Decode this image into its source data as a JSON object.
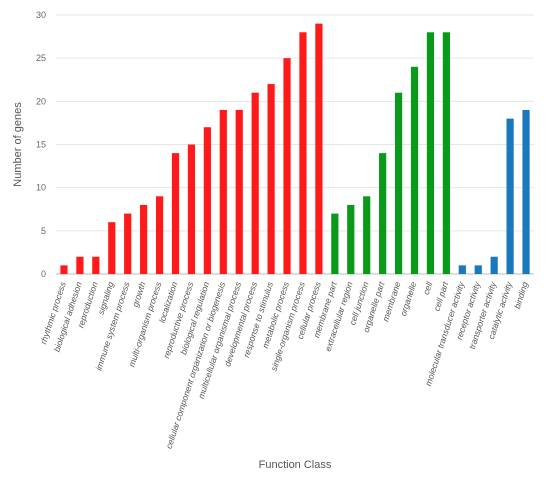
{
  "chart_data": {
    "type": "bar",
    "xlabel": "Function Class",
    "ylabel": "Number of genes",
    "ylim": [
      0,
      30
    ],
    "yticks": [
      0,
      5,
      10,
      15,
      20,
      25,
      30
    ],
    "grid": true,
    "colors": {
      "biological_process": "#ff1a1a",
      "cellular_component": "#0a9a1a",
      "molecular_function": "#1a78bd"
    },
    "categories": [
      "rhythmic process",
      "biological adhesion",
      "reproduction",
      "signaling",
      "immune system process",
      "growth",
      "multi-organism process",
      "localization",
      "reproductive process",
      "biological regulation",
      "cellular component organization or biogenesis",
      "multicellular organismal process",
      "developmental process",
      "response to stimulus",
      "metabolic process",
      "single-organism process",
      "cellular process",
      "membrane part",
      "extracellular region",
      "cell junction",
      "organelle part",
      "membrane",
      "organelle",
      "cell",
      "cell part",
      "molecular transducer activity",
      "receptor activity",
      "transporter activity",
      "catalytic activity",
      "binding"
    ],
    "values": [
      1,
      2,
      2,
      6,
      7,
      8,
      9,
      14,
      15,
      17,
      19,
      19,
      21,
      22,
      25,
      28,
      29,
      7,
      8,
      9,
      14,
      21,
      24,
      28,
      28,
      1,
      1,
      2,
      18,
      19
    ],
    "groups": [
      "biological_process",
      "biological_process",
      "biological_process",
      "biological_process",
      "biological_process",
      "biological_process",
      "biological_process",
      "biological_process",
      "biological_process",
      "biological_process",
      "biological_process",
      "biological_process",
      "biological_process",
      "biological_process",
      "biological_process",
      "biological_process",
      "biological_process",
      "cellular_component",
      "cellular_component",
      "cellular_component",
      "cellular_component",
      "cellular_component",
      "cellular_component",
      "cellular_component",
      "cellular_component",
      "molecular_function",
      "molecular_function",
      "molecular_function",
      "molecular_function",
      "molecular_function"
    ]
  }
}
